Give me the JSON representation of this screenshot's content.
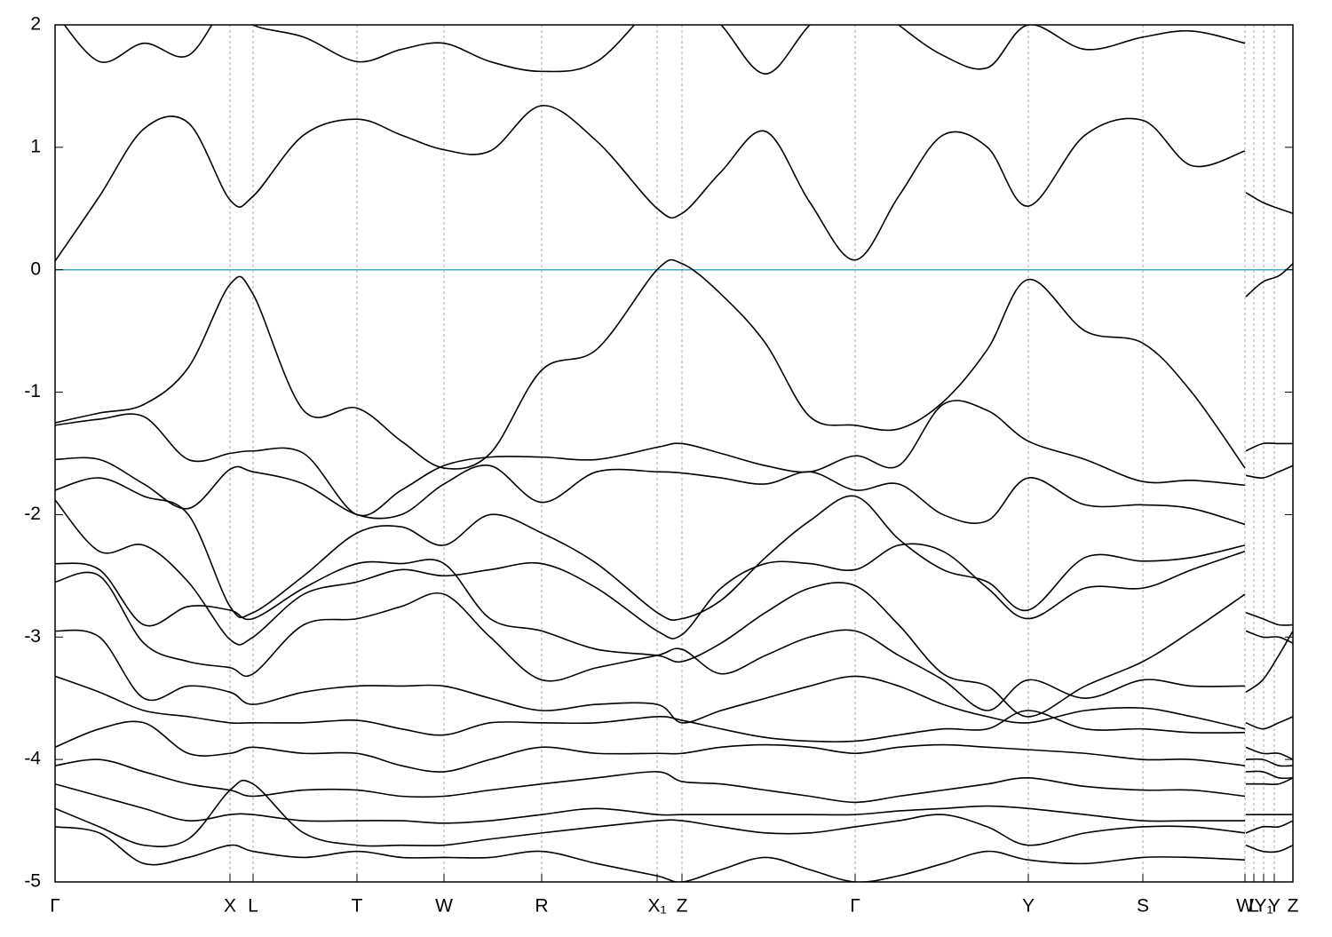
{
  "chart_data": {
    "type": "line",
    "xlim": [
      0,
      13.94
    ],
    "ylim": [
      -5,
      2
    ],
    "yticks": [
      -5,
      -4,
      -3,
      -2,
      -1,
      0,
      1,
      2
    ],
    "xticks": [
      {
        "value": 0,
        "label": "Γ"
      },
      {
        "value": 1.97,
        "label": "X"
      },
      {
        "value": 2.23,
        "label": "L"
      },
      {
        "value": 3.4,
        "label": "T"
      },
      {
        "value": 4.38,
        "label": "W"
      },
      {
        "value": 5.48,
        "label": "R"
      },
      {
        "value": 6.78,
        "label": "X₁"
      },
      {
        "value": 7.06,
        "label": "Z"
      },
      {
        "value": 9.01,
        "label": "Γ"
      },
      {
        "value": 10.96,
        "label": "Y"
      },
      {
        "value": 12.25,
        "label": "S"
      },
      {
        "value": 13.4,
        "label": "W"
      },
      {
        "value": 13.5,
        "label": "L"
      },
      {
        "value": 13.61,
        "label": "Y₁"
      },
      {
        "value": 13.73,
        "label": "Y"
      },
      {
        "value": 13.94,
        "label": "Z"
      }
    ],
    "grid": true,
    "hline": {
      "value": 0,
      "color": "#4aa9c4"
    },
    "x": [
      0,
      0.5,
      1.0,
      1.5,
      1.97,
      2.23,
      2.8,
      3.4,
      3.9,
      4.38,
      4.9,
      5.48,
      6.1,
      6.78,
      7.06,
      7.5,
      8.0,
      8.5,
      9.01,
      9.5,
      10.0,
      10.5,
      10.96,
      11.6,
      12.25,
      12.8,
      13.4,
      13.405,
      13.41,
      13.6,
      13.78,
      13.94
    ],
    "series": [
      {
        "color": "#000000",
        "values": [
          2.1,
          1.7,
          1.85,
          1.75,
          2.2,
          2.0,
          1.9,
          1.7,
          1.8,
          1.85,
          1.7,
          1.62,
          1.7,
          2.2,
          2.3,
          2.0,
          1.6,
          2.0,
          2.3,
          2.0,
          1.75,
          1.65,
          2.0,
          1.8,
          1.9,
          1.95,
          1.85,
          null,
          2.2,
          2.2,
          2.2,
          2.2
        ]
      },
      {
        "color": "#000000",
        "values": [
          0.07,
          0.6,
          1.15,
          1.2,
          0.57,
          0.6,
          1.1,
          1.23,
          1.1,
          0.98,
          0.97,
          1.34,
          1.05,
          0.5,
          0.46,
          0.8,
          1.13,
          0.55,
          0.08,
          0.6,
          1.1,
          1.0,
          0.52,
          1.1,
          1.22,
          0.85,
          0.97,
          null,
          0.63,
          0.55,
          0.5,
          0.46
        ]
      },
      {
        "color": "#000000",
        "values": [
          -1.25,
          -1.17,
          -1.1,
          -0.8,
          -0.12,
          -0.2,
          -1.15,
          -1.13,
          -1.4,
          -1.62,
          -1.5,
          -0.82,
          -0.65,
          0.0,
          0.05,
          -0.2,
          -0.6,
          -1.2,
          -1.27,
          -1.3,
          -1.08,
          -0.65,
          -0.08,
          -0.5,
          -0.6,
          -1.0,
          -1.62,
          null,
          -0.22,
          -0.1,
          -0.05,
          0.05
        ]
      },
      {
        "color": "#000000",
        "values": [
          -1.27,
          -1.22,
          -1.2,
          -1.55,
          -1.5,
          -1.48,
          -1.5,
          -2.0,
          -1.8,
          -1.6,
          -1.53,
          -1.53,
          -1.55,
          -1.45,
          -1.42,
          -1.5,
          -1.6,
          -1.65,
          -1.52,
          -1.6,
          -1.1,
          -1.15,
          -1.4,
          -1.55,
          -1.73,
          -1.72,
          -1.76,
          null,
          -1.48,
          -1.42,
          -1.42,
          -1.42
        ]
      },
      {
        "color": "#000000",
        "values": [
          -1.55,
          -1.55,
          -1.75,
          -1.95,
          -1.63,
          -1.65,
          -1.75,
          -2.0,
          -2.0,
          -1.75,
          -1.6,
          -1.9,
          -1.65,
          -1.65,
          -1.66,
          -1.7,
          -1.75,
          -1.65,
          -1.8,
          -1.75,
          -2.0,
          -2.05,
          -1.7,
          -1.92,
          -1.92,
          -1.95,
          -2.08,
          null,
          -1.68,
          -1.7,
          -1.65,
          -1.6
        ]
      },
      {
        "color": "#000000",
        "values": [
          -1.8,
          -1.7,
          -1.85,
          -2.0,
          -2.75,
          -2.8,
          -2.5,
          -2.15,
          -2.1,
          -2.25,
          -2.0,
          -2.15,
          -2.4,
          -2.8,
          -2.85,
          -2.7,
          -2.35,
          -2.05,
          -1.85,
          -2.2,
          -2.45,
          -2.55,
          -2.78,
          -2.35,
          -2.38,
          -2.35,
          -2.25,
          null,
          -2.8,
          -2.85,
          -2.9,
          -2.9
        ]
      },
      {
        "color": "#000000",
        "values": [
          -1.88,
          -2.3,
          -2.25,
          -2.55,
          -3.02,
          -3.0,
          -2.65,
          -2.55,
          -2.45,
          -2.5,
          -2.45,
          -2.4,
          -2.6,
          -2.95,
          -2.98,
          -2.6,
          -2.4,
          -2.4,
          -2.45,
          -2.25,
          -2.3,
          -2.6,
          -2.85,
          -2.6,
          -2.6,
          -2.45,
          -2.3,
          null,
          -2.95,
          -3.0,
          -3.0,
          -3.05
        ]
      },
      {
        "color": "#000000",
        "values": [
          -2.4,
          -2.45,
          -2.9,
          -2.75,
          -2.78,
          -2.85,
          -2.6,
          -2.4,
          -2.4,
          -2.4,
          -2.85,
          -2.95,
          -3.1,
          -3.15,
          -3.2,
          -3.05,
          -2.8,
          -2.6,
          -2.58,
          -2.9,
          -3.3,
          -3.4,
          -3.65,
          -3.4,
          -3.2,
          -2.95,
          -2.65,
          null,
          -3.45,
          -3.35,
          -3.15,
          -2.95
        ]
      },
      {
        "color": "#000000",
        "values": [
          -2.55,
          -2.5,
          -3.05,
          -3.2,
          -3.25,
          -3.3,
          -2.9,
          -2.85,
          -2.75,
          -2.65,
          -3.0,
          -3.35,
          -3.25,
          -3.15,
          -3.1,
          -3.3,
          -3.15,
          -3.0,
          -2.95,
          -3.15,
          -3.35,
          -3.6,
          -3.35,
          -3.5,
          -3.35,
          -3.4,
          -3.4,
          null,
          -3.7,
          -3.75,
          -3.7,
          -3.65
        ]
      },
      {
        "color": "#000000",
        "values": [
          -2.95,
          -3.0,
          -3.5,
          -3.4,
          -3.45,
          -3.55,
          -3.45,
          -3.4,
          -3.4,
          -3.4,
          -3.5,
          -3.6,
          -3.55,
          -3.55,
          -3.7,
          -3.6,
          -3.5,
          -3.4,
          -3.32,
          -3.4,
          -3.55,
          -3.65,
          -3.7,
          -3.6,
          -3.58,
          -3.65,
          -3.75,
          null,
          -3.9,
          -3.95,
          -3.95,
          -4.0
        ]
      },
      {
        "color": "#000000",
        "values": [
          -3.32,
          -3.45,
          -3.6,
          -3.65,
          -3.7,
          -3.7,
          -3.7,
          -3.68,
          -3.75,
          -3.8,
          -3.7,
          -3.7,
          -3.7,
          -3.65,
          -3.68,
          -3.75,
          -3.82,
          -3.85,
          -3.85,
          -3.8,
          -3.75,
          -3.75,
          -3.6,
          -3.75,
          -3.75,
          -3.78,
          -3.78,
          null,
          -4.0,
          -4.0,
          -4.05,
          -4.05
        ]
      },
      {
        "color": "#000000",
        "values": [
          -3.9,
          -3.75,
          -3.7,
          -3.95,
          -3.95,
          -3.9,
          -3.95,
          -3.95,
          -4.05,
          -4.1,
          -4.0,
          -3.9,
          -3.95,
          -3.95,
          -3.95,
          -3.9,
          -3.88,
          -3.9,
          -3.95,
          -3.9,
          -3.88,
          -3.9,
          -3.92,
          -3.95,
          -4.0,
          -4.0,
          -4.05,
          null,
          -4.1,
          -4.1,
          -4.15,
          -4.15
        ]
      },
      {
        "color": "#000000",
        "values": [
          -4.05,
          -4.0,
          -4.1,
          -4.2,
          -4.25,
          -4.3,
          -4.25,
          -4.25,
          -4.3,
          -4.3,
          -4.25,
          -4.2,
          -4.15,
          -4.1,
          -4.18,
          -4.2,
          -4.25,
          -4.3,
          -4.35,
          -4.3,
          -4.25,
          -4.2,
          -4.15,
          -4.22,
          -4.25,
          -4.25,
          -4.3,
          null,
          -4.2,
          -4.2,
          -4.2,
          -4.15
        ]
      },
      {
        "color": "#000000",
        "values": [
          -4.2,
          -4.3,
          -4.4,
          -4.5,
          -4.45,
          -4.45,
          -4.5,
          -4.5,
          -4.5,
          -4.52,
          -4.5,
          -4.45,
          -4.4,
          -4.45,
          -4.45,
          -4.45,
          -4.45,
          -4.45,
          -4.45,
          -4.42,
          -4.4,
          -4.38,
          -4.4,
          -4.45,
          -4.5,
          -4.5,
          -4.5,
          null,
          -4.45,
          -4.45,
          -4.45,
          -4.45
        ]
      },
      {
        "color": "#000000",
        "values": [
          -4.4,
          -4.55,
          -4.7,
          -4.65,
          -4.25,
          -4.2,
          -4.6,
          -4.7,
          -4.7,
          -4.7,
          -4.65,
          -4.6,
          -4.55,
          -4.5,
          -4.5,
          -4.55,
          -4.6,
          -4.6,
          -4.55,
          -4.5,
          -4.45,
          -4.55,
          -4.7,
          -4.6,
          -4.55,
          -4.55,
          -4.6,
          null,
          -4.6,
          -4.55,
          -4.55,
          -4.5
        ]
      },
      {
        "color": "#000000",
        "values": [
          -4.55,
          -4.6,
          -4.85,
          -4.8,
          -4.7,
          -4.75,
          -4.8,
          -4.75,
          -4.8,
          -4.8,
          -4.8,
          -4.75,
          -4.85,
          -4.95,
          -5.0,
          -4.9,
          -4.8,
          -4.9,
          -5.0,
          -4.95,
          -4.85,
          -4.75,
          -4.82,
          -4.85,
          -4.8,
          -4.8,
          -4.82,
          null,
          -4.7,
          -4.75,
          -4.75,
          -4.7
        ]
      }
    ]
  }
}
